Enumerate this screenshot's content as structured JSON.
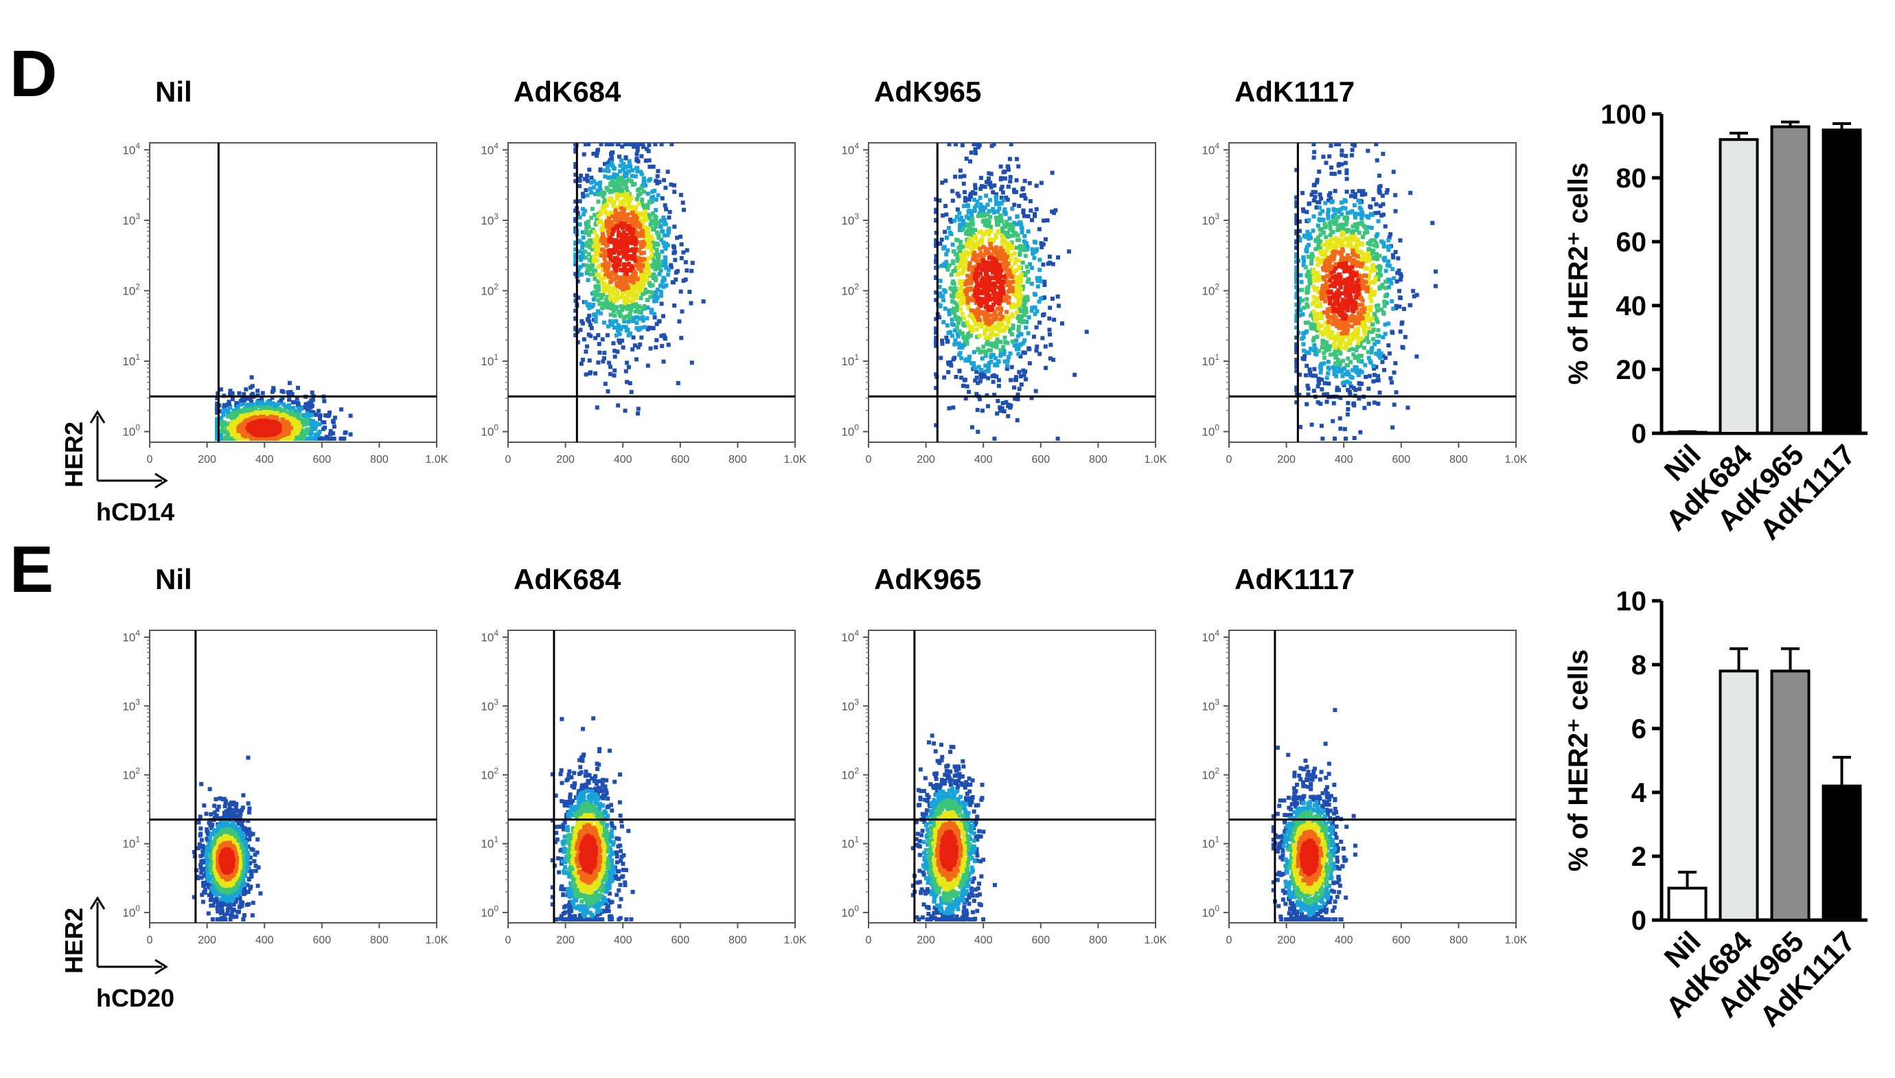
{
  "figure": {
    "panel_d_letter": "D",
    "panel_e_letter": "E",
    "axis_y_marker": "HER2",
    "panel_d_x_marker": "hCD14",
    "panel_e_x_marker": "hCD20"
  },
  "colors": {
    "density_low": "#1f4fb0",
    "density_mid_low": "#1aa3d9",
    "density_mid": "#3cc47a",
    "density_mid_high": "#e6e619",
    "density_high": "#f06a1a",
    "density_peak": "#e8200e",
    "gate_line": "#000000",
    "bar_nil": "#ffffff",
    "bar_adk684": "#e5e7e7",
    "bar_adk965": "#8a8a8a",
    "bar_adk1117": "#000000"
  },
  "chart_data": [
    {
      "type": "scatter",
      "panel": "D",
      "title": "Nil",
      "x_ticks": [
        "0",
        "200",
        "400",
        "600",
        "800",
        "1.0K"
      ],
      "y_ticks": [
        "10^0",
        "10^1",
        "10^2",
        "10^3",
        "10^4"
      ],
      "xlim": [
        0,
        1000
      ],
      "ylim_log10": [
        -0.15,
        4.1
      ],
      "x_gate": 240,
      "y_gate_log10": 0.5,
      "cluster": {
        "x_center": 400,
        "x_spread": 120,
        "y_center_log10": 0.05,
        "y_spread_log10": 0.22,
        "x_max": 700
      }
    },
    {
      "type": "scatter",
      "panel": "D",
      "title": "AdK684",
      "x_ticks": [
        "0",
        "200",
        "400",
        "600",
        "800",
        "1.0K"
      ],
      "y_ticks": [
        "10^0",
        "10^1",
        "10^2",
        "10^3",
        "10^4"
      ],
      "xlim": [
        0,
        1000
      ],
      "ylim_log10": [
        -0.15,
        4.1
      ],
      "x_gate": 240,
      "y_gate_log10": 0.5,
      "cluster": {
        "x_center": 400,
        "x_spread": 100,
        "y_center_log10": 2.6,
        "y_spread_log10": 0.75,
        "x_max": 720
      }
    },
    {
      "type": "scatter",
      "panel": "D",
      "title": "AdK965",
      "x_ticks": [
        "0",
        "200",
        "400",
        "600",
        "800",
        "1.0K"
      ],
      "y_ticks": [
        "10^0",
        "10^1",
        "10^2",
        "10^3",
        "10^4"
      ],
      "xlim": [
        0,
        1000
      ],
      "ylim_log10": [
        -0.15,
        4.1
      ],
      "x_gate": 240,
      "y_gate_log10": 0.5,
      "cluster": {
        "x_center": 420,
        "x_spread": 110,
        "y_center_log10": 2.1,
        "y_spread_log10": 0.75,
        "x_max": 760
      }
    },
    {
      "type": "scatter",
      "panel": "D",
      "title": "AdK1117",
      "x_ticks": [
        "0",
        "200",
        "400",
        "600",
        "800",
        "1.0K"
      ],
      "y_ticks": [
        "10^0",
        "10^1",
        "10^2",
        "10^3",
        "10^4"
      ],
      "xlim": [
        0,
        1000
      ],
      "ylim_log10": [
        -0.15,
        4.1
      ],
      "x_gate": 240,
      "y_gate_log10": 0.5,
      "cluster": {
        "x_center": 400,
        "x_spread": 110,
        "y_center_log10": 2.0,
        "y_spread_log10": 0.8,
        "x_max": 720
      }
    },
    {
      "type": "bar",
      "panel": "D",
      "categories": [
        "Nil",
        "AdK684",
        "AdK965",
        "AdK1117"
      ],
      "values": [
        0.3,
        92,
        96,
        95
      ],
      "errors": [
        0.2,
        2,
        1.5,
        2
      ],
      "ylabel": "% of HER2⁺ cells",
      "ylim": [
        0,
        100
      ],
      "y_ticks": [
        0,
        20,
        40,
        60,
        80,
        100
      ]
    },
    {
      "type": "scatter",
      "panel": "E",
      "title": "Nil",
      "x_ticks": [
        "0",
        "200",
        "400",
        "600",
        "800",
        "1.0K"
      ],
      "y_ticks": [
        "10^0",
        "10^1",
        "10^2",
        "10^3",
        "10^4"
      ],
      "xlim": [
        0,
        1000
      ],
      "ylim_log10": [
        -0.15,
        4.1
      ],
      "x_gate": 160,
      "y_gate_log10": 1.35,
      "cluster": {
        "x_center": 270,
        "x_spread": 45,
        "y_center_log10": 0.75,
        "y_spread_log10": 0.35,
        "x_max": 420
      }
    },
    {
      "type": "scatter",
      "panel": "E",
      "title": "AdK684",
      "x_ticks": [
        "0",
        "200",
        "400",
        "600",
        "800",
        "1.0K"
      ],
      "y_ticks": [
        "10^0",
        "10^1",
        "10^2",
        "10^3",
        "10^4"
      ],
      "xlim": [
        0,
        1000
      ],
      "ylim_log10": [
        -0.15,
        4.1
      ],
      "x_gate": 160,
      "y_gate_log10": 1.35,
      "cluster": {
        "x_center": 280,
        "x_spread": 55,
        "y_center_log10": 0.85,
        "y_spread_log10": 0.55,
        "x_max": 440
      }
    },
    {
      "type": "scatter",
      "panel": "E",
      "title": "AdK965",
      "x_ticks": [
        "0",
        "200",
        "400",
        "600",
        "800",
        "1.0K"
      ],
      "y_ticks": [
        "10^0",
        "10^1",
        "10^2",
        "10^3",
        "10^4"
      ],
      "xlim": [
        0,
        1000
      ],
      "ylim_log10": [
        -0.15,
        4.1
      ],
      "x_gate": 160,
      "y_gate_log10": 1.35,
      "cluster": {
        "x_center": 280,
        "x_spread": 55,
        "y_center_log10": 0.9,
        "y_spread_log10": 0.55,
        "x_max": 440
      }
    },
    {
      "type": "scatter",
      "panel": "E",
      "title": "AdK1117",
      "x_ticks": [
        "0",
        "200",
        "400",
        "600",
        "800",
        "1.0K"
      ],
      "y_ticks": [
        "10^0",
        "10^1",
        "10^2",
        "10^3",
        "10^4"
      ],
      "xlim": [
        0,
        1000
      ],
      "ylim_log10": [
        -0.15,
        4.1
      ],
      "x_gate": 160,
      "y_gate_log10": 1.35,
      "cluster": {
        "x_center": 280,
        "x_spread": 55,
        "y_center_log10": 0.8,
        "y_spread_log10": 0.5,
        "x_max": 440
      }
    },
    {
      "type": "bar",
      "panel": "E",
      "categories": [
        "Nil",
        "AdK684",
        "AdK965",
        "AdK1117"
      ],
      "values": [
        1.0,
        7.8,
        7.8,
        4.2
      ],
      "errors": [
        0.5,
        0.7,
        0.7,
        0.9
      ],
      "ylabel": "% of HER2⁺ cells",
      "ylim": [
        0,
        10
      ],
      "y_ticks": [
        0,
        2,
        4,
        6,
        8,
        10
      ]
    }
  ]
}
